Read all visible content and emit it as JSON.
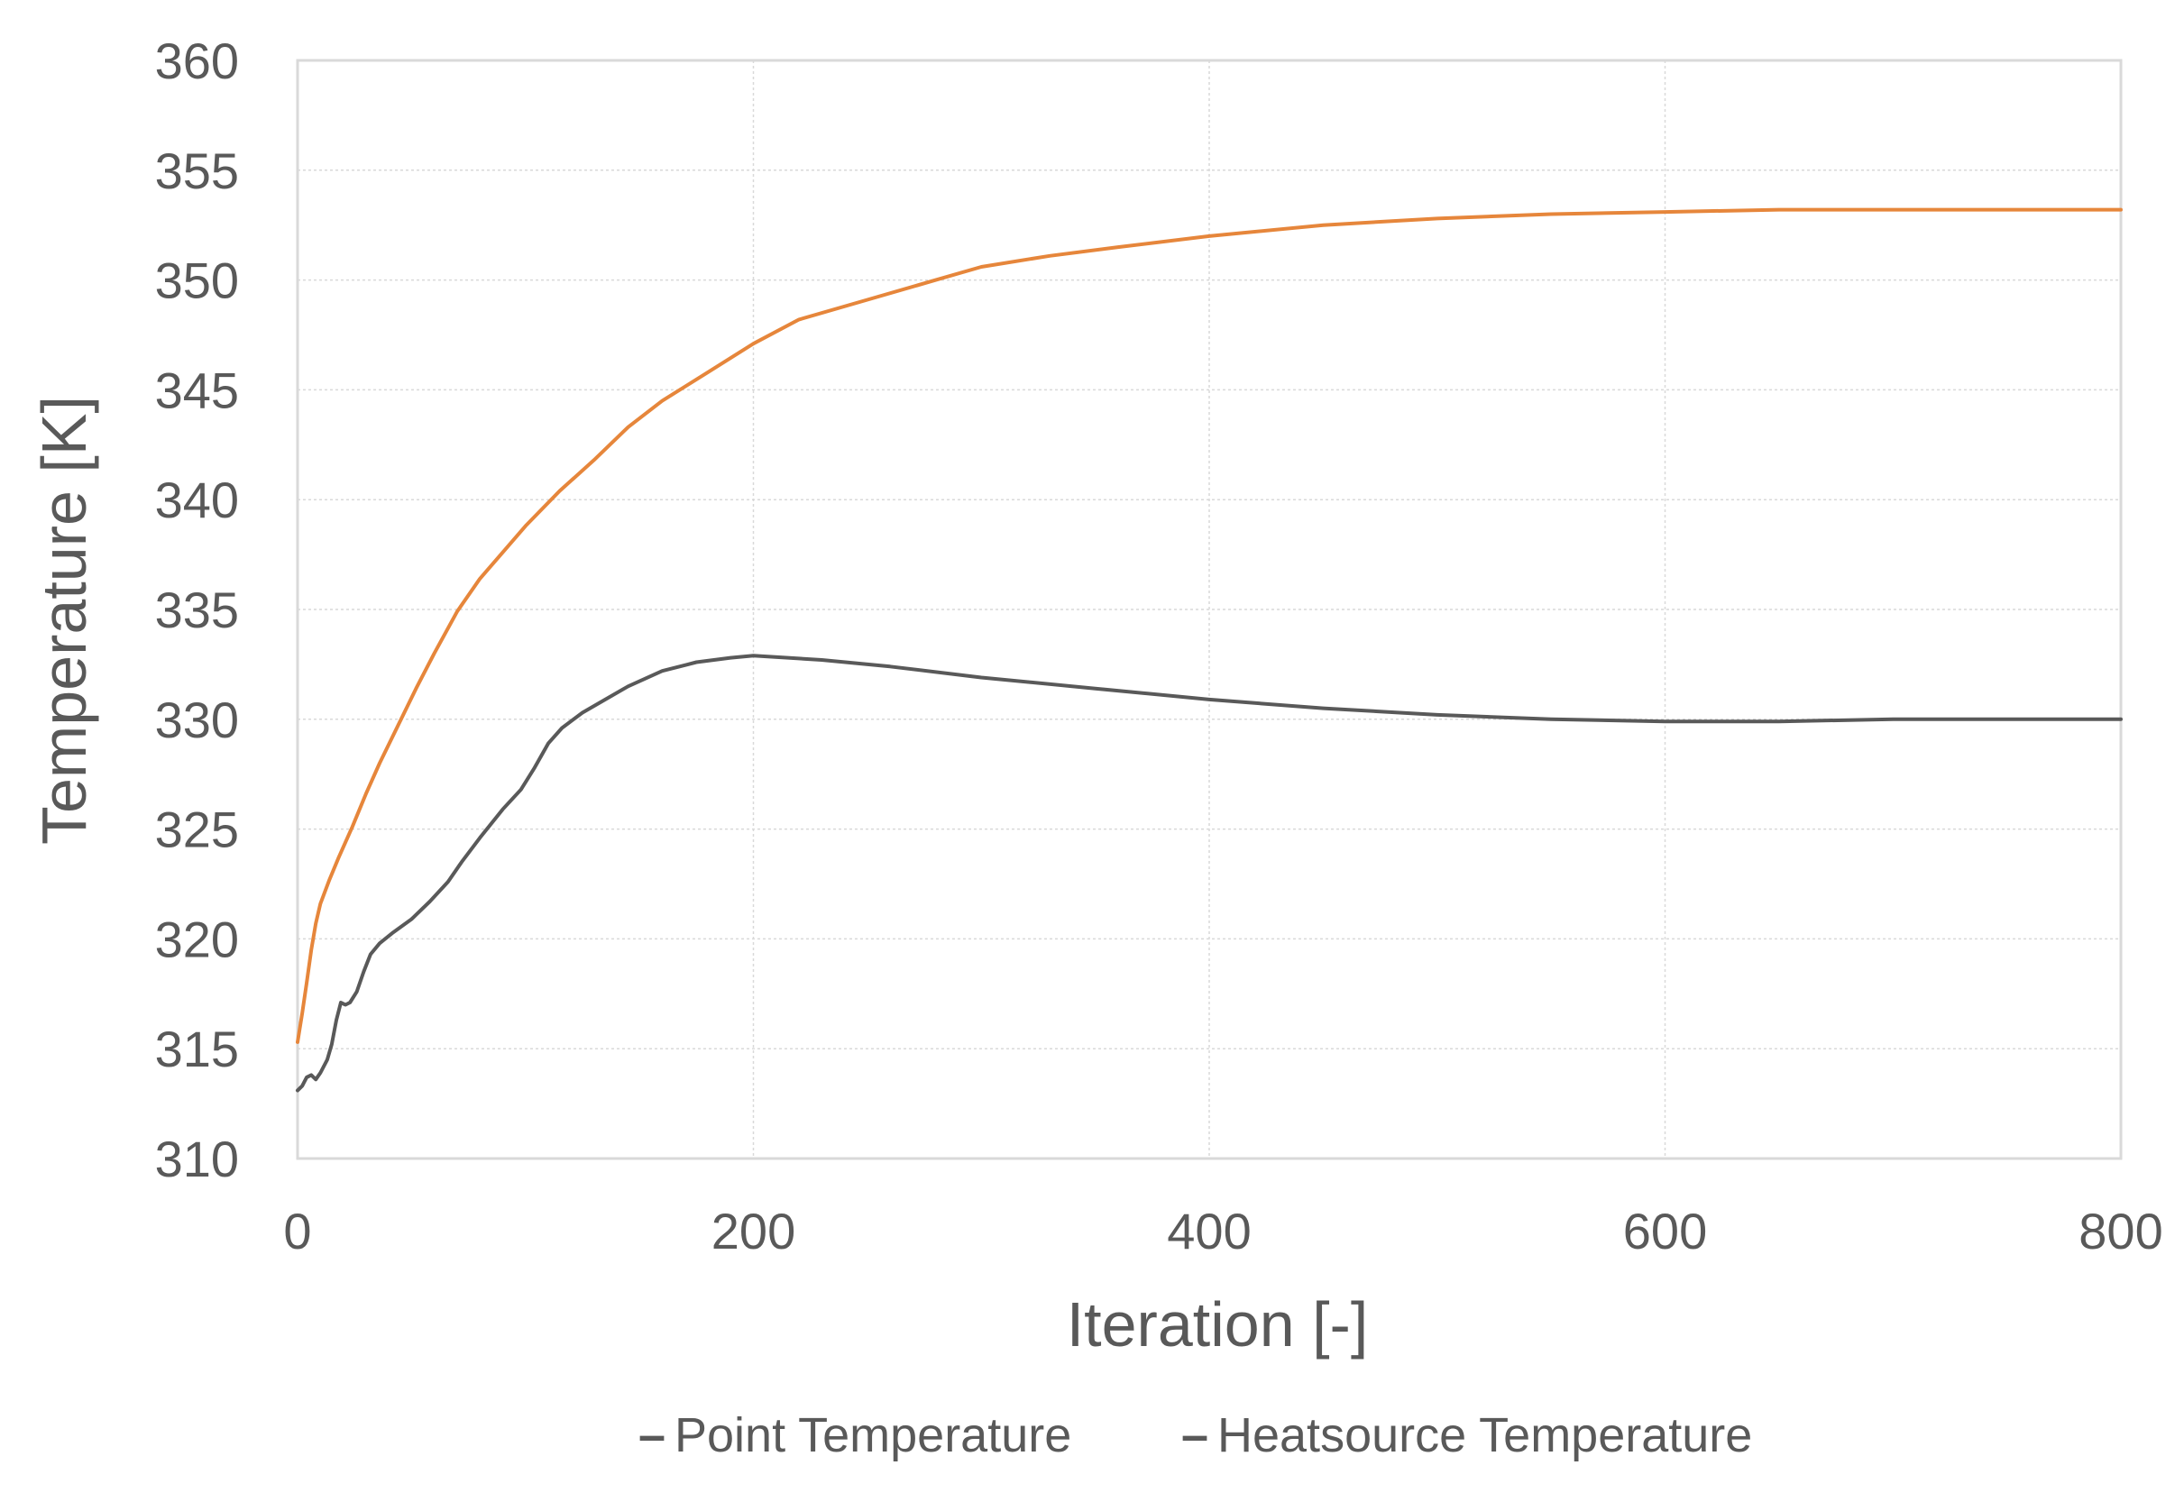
{
  "chart_data": {
    "type": "line",
    "title": "",
    "xlabel": "Iteration [-]",
    "ylabel": "Temperature [K]",
    "xlim": [
      0,
      800
    ],
    "ylim": [
      310,
      360
    ],
    "x_ticks": [
      0,
      200,
      400,
      600,
      800
    ],
    "y_ticks": [
      310,
      315,
      320,
      325,
      330,
      335,
      340,
      345,
      350,
      355,
      360
    ],
    "x_tick_labels": [
      "0",
      "200",
      "400",
      "600",
      "800"
    ],
    "y_tick_labels": [
      "310",
      "315",
      "320",
      "325",
      "330",
      "335",
      "340",
      "345",
      "350",
      "355",
      "360"
    ],
    "grid": true,
    "legend_position": "bottom",
    "legend_marker": "–",
    "series": [
      {
        "name": "Point Temperature",
        "color": "#595959",
        "points": [
          [
            0,
            313.1
          ],
          [
            2,
            313.3
          ],
          [
            4,
            313.7
          ],
          [
            6,
            313.8
          ],
          [
            8,
            313.6
          ],
          [
            10,
            313.9
          ],
          [
            13,
            314.5
          ],
          [
            15,
            315.2
          ],
          [
            17,
            316.3
          ],
          [
            19,
            317.1
          ],
          [
            21,
            317.0
          ],
          [
            23,
            317.1
          ],
          [
            26,
            317.6
          ],
          [
            29,
            318.5
          ],
          [
            32,
            319.3
          ],
          [
            36,
            319.8
          ],
          [
            42,
            320.3
          ],
          [
            50,
            320.9
          ],
          [
            58,
            321.7
          ],
          [
            66,
            322.6
          ],
          [
            72,
            323.5
          ],
          [
            80,
            324.6
          ],
          [
            90,
            325.9
          ],
          [
            98,
            326.8
          ],
          [
            104,
            327.8
          ],
          [
            110,
            328.9
          ],
          [
            116,
            329.6
          ],
          [
            125,
            330.3
          ],
          [
            135,
            330.9
          ],
          [
            145,
            331.5
          ],
          [
            160,
            332.2
          ],
          [
            175,
            332.6
          ],
          [
            190,
            332.8
          ],
          [
            200,
            332.9
          ],
          [
            230,
            332.7
          ],
          [
            260,
            332.4
          ],
          [
            300,
            331.9
          ],
          [
            350,
            331.4
          ],
          [
            400,
            330.9
          ],
          [
            450,
            330.5
          ],
          [
            500,
            330.2
          ],
          [
            550,
            330.0
          ],
          [
            600,
            329.9
          ],
          [
            650,
            329.9
          ],
          [
            700,
            330.0
          ],
          [
            750,
            330.0
          ],
          [
            800,
            330.0
          ]
        ]
      },
      {
        "name": "Heatsource Temperature",
        "color": "#E6863B",
        "points": [
          [
            0,
            315.3
          ],
          [
            2,
            316.6
          ],
          [
            4,
            318.0
          ],
          [
            6,
            319.5
          ],
          [
            8,
            320.7
          ],
          [
            10,
            321.6
          ],
          [
            14,
            322.7
          ],
          [
            18,
            323.7
          ],
          [
            24,
            325.1
          ],
          [
            30,
            326.6
          ],
          [
            36,
            328.0
          ],
          [
            44,
            329.7
          ],
          [
            52,
            331.4
          ],
          [
            60,
            333.0
          ],
          [
            70,
            334.9
          ],
          [
            80,
            336.4
          ],
          [
            90,
            337.6
          ],
          [
            100,
            338.8
          ],
          [
            115,
            340.4
          ],
          [
            130,
            341.8
          ],
          [
            145,
            343.3
          ],
          [
            160,
            344.5
          ],
          [
            180,
            345.8
          ],
          [
            200,
            347.1
          ],
          [
            220,
            348.2
          ],
          [
            250,
            349.1
          ],
          [
            280,
            350.0
          ],
          [
            300,
            350.6
          ],
          [
            330,
            351.1
          ],
          [
            360,
            351.5
          ],
          [
            400,
            352.0
          ],
          [
            450,
            352.5
          ],
          [
            500,
            352.8
          ],
          [
            550,
            353.0
          ],
          [
            600,
            353.1
          ],
          [
            650,
            353.2
          ],
          [
            700,
            353.2
          ],
          [
            750,
            353.2
          ],
          [
            800,
            353.2
          ]
        ]
      }
    ]
  }
}
